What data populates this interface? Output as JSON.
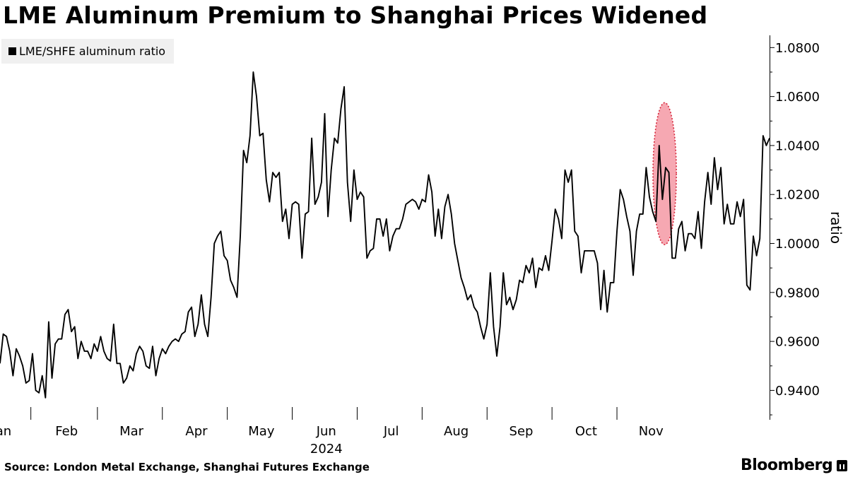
{
  "title": "LME Aluminum Premium to Shanghai Prices Widened",
  "source": "Source: London Metal Exchange, Shanghai Futures Exchange",
  "brand": "Bloomberg",
  "chart_data": {
    "type": "line",
    "title": "LME Aluminum Premium to Shanghai Prices Widened",
    "xlabel": "2024",
    "ylabel": "ratio",
    "ylim": [
      0.928,
      1.085
    ],
    "yticks": [
      0.94,
      0.96,
      0.98,
      1.0,
      1.02,
      1.04,
      1.06,
      1.08
    ],
    "ytick_labels": [
      "0.9400",
      "0.9600",
      "0.9800",
      "1.0000",
      "1.0200",
      "1.0400",
      "1.0600",
      "1.0800"
    ],
    "xtick_labels": [
      "Jan",
      "Feb",
      "Mar",
      "Apr",
      "May",
      "Jun",
      "Jul",
      "Aug",
      "Sep",
      "Oct",
      "Nov"
    ],
    "xtick_positions": [
      0.5,
      20.5,
      40.5,
      60.5,
      80.5,
      100.5,
      120.5,
      140.5,
      160.5,
      180.5,
      200.5
    ],
    "year_label": "2024",
    "legend": [
      {
        "name": "LME/SHFE aluminum ratio",
        "color": "#000000"
      }
    ],
    "highlight": {
      "type": "ellipse",
      "x_center": 204.7,
      "y_center": 1.0285,
      "x_radius": 3.6,
      "y_radius": 0.029,
      "color": "#f5a3ae"
    },
    "grid": false,
    "series": [
      {
        "name": "LME/SHFE aluminum ratio",
        "values": [
          0.951,
          0.963,
          0.962,
          0.956,
          0.946,
          0.957,
          0.954,
          0.95,
          0.943,
          0.944,
          0.955,
          0.94,
          0.939,
          0.946,
          0.937,
          0.968,
          0.945,
          0.959,
          0.961,
          0.961,
          0.971,
          0.973,
          0.964,
          0.966,
          0.953,
          0.96,
          0.956,
          0.956,
          0.953,
          0.959,
          0.956,
          0.962,
          0.956,
          0.953,
          0.952,
          0.967,
          0.951,
          0.951,
          0.943,
          0.945,
          0.95,
          0.948,
          0.955,
          0.958,
          0.956,
          0.95,
          0.949,
          0.958,
          0.946,
          0.953,
          0.957,
          0.955,
          0.958,
          0.96,
          0.961,
          0.96,
          0.963,
          0.964,
          0.972,
          0.974,
          0.962,
          0.967,
          0.979,
          0.967,
          0.962,
          0.978,
          1.0,
          1.003,
          1.005,
          0.995,
          0.993,
          0.985,
          0.982,
          0.978,
          1.003,
          1.038,
          1.033,
          1.044,
          1.07,
          1.06,
          1.044,
          1.045,
          1.026,
          1.017,
          1.029,
          1.027,
          1.029,
          1.009,
          1.014,
          1.002,
          1.016,
          1.017,
          1.016,
          0.994,
          1.012,
          1.013,
          1.043,
          1.016,
          1.019,
          1.025,
          1.053,
          1.011,
          1.03,
          1.043,
          1.041,
          1.055,
          1.064,
          1.025,
          1.009,
          1.03,
          1.018,
          1.021,
          1.019,
          0.994,
          0.997,
          0.998,
          1.01,
          1.01,
          1.003,
          1.01,
          0.997,
          1.003,
          1.006,
          1.006,
          1.01,
          1.016,
          1.017,
          1.018,
          1.017,
          1.014,
          1.018,
          1.017,
          1.028,
          1.021,
          1.003,
          1.014,
          1.002,
          1.015,
          1.02,
          1.012,
          1.0,
          0.993,
          0.986,
          0.982,
          0.977,
          0.979,
          0.974,
          0.972,
          0.966,
          0.961,
          0.967,
          0.988,
          0.966,
          0.954,
          0.966,
          0.988,
          0.975,
          0.978,
          0.973,
          0.977,
          0.985,
          0.984,
          0.991,
          0.988,
          0.994,
          0.982,
          0.99,
          0.989,
          0.995,
          0.989,
          1.001,
          1.014,
          1.01,
          1.002,
          1.03,
          1.025,
          1.03,
          1.005,
          1.003,
          0.988,
          0.997,
          0.997,
          0.997,
          0.997,
          0.992,
          0.973,
          0.989,
          0.972,
          0.984,
          0.984,
          1.005,
          1.022,
          1.018,
          1.011,
          1.005,
          0.987,
          1.005,
          1.012,
          1.012,
          1.031,
          1.019,
          1.013,
          1.009,
          1.04,
          1.018,
          1.031,
          1.029,
          0.994,
          0.994,
          1.006,
          1.009,
          0.997,
          1.004,
          1.004,
          1.002,
          1.013,
          0.998,
          1.017,
          1.029,
          1.016,
          1.035,
          1.022,
          1.031,
          1.008,
          1.016,
          1.008,
          1.008,
          1.017,
          1.011,
          1.018,
          0.983,
          0.981,
          1.003,
          0.995,
          1.002,
          1.044,
          1.04,
          1.043
        ]
      }
    ]
  }
}
